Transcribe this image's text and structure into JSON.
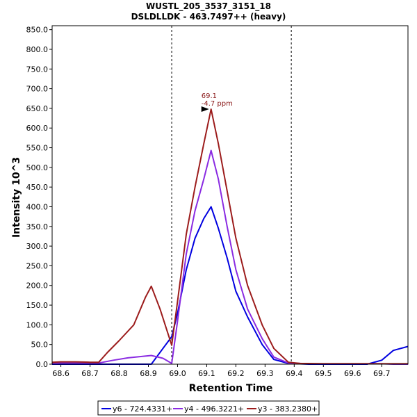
{
  "chart_data": {
    "type": "line",
    "title": "WUSTL_205_3537_3151_18",
    "subtitle": "DSLDLLDK - 463.7497++ (heavy)",
    "xlabel": "Retention Time",
    "ylabel": "Intensity 10^3",
    "xlim": [
      68.57,
      69.79
    ],
    "ylim": [
      0,
      860
    ],
    "x_ticks": [
      "68.6",
      "68.7",
      "68.8",
      "68.9",
      "69.0",
      "69.1",
      "69.2",
      "69.3",
      "69.4",
      "69.5",
      "69.6",
      "69.7"
    ],
    "x_tick_values": [
      68.6,
      68.7,
      68.8,
      68.9,
      69.0,
      69.1,
      69.2,
      69.3,
      69.4,
      69.5,
      69.6,
      69.7
    ],
    "y_ticks": [
      "0.0",
      "50.0",
      "100.0",
      "150.0",
      "200.0",
      "250.0",
      "300.0",
      "350.0",
      "400.0",
      "450.0",
      "500.0",
      "550.0",
      "600.0",
      "650.0",
      "700.0",
      "750.0",
      "800.0",
      "850.0"
    ],
    "y_tick_values": [
      0,
      50,
      100,
      150,
      200,
      250,
      300,
      350,
      400,
      450,
      500,
      550,
      600,
      650,
      700,
      750,
      800,
      850
    ],
    "vlines": [
      68.98,
      69.39
    ],
    "legend_position": "bottom",
    "grid": false,
    "annotation": {
      "x": 69.115,
      "y": 648,
      "lines": [
        "69.1",
        "-4.7 ppm"
      ],
      "color": "#8b1a1a"
    },
    "series": [
      {
        "name": "y6 - 724.4331+",
        "color": "#0000e0",
        "x": [
          68.57,
          68.6,
          68.65,
          68.7,
          68.75,
          68.8,
          68.85,
          68.91,
          68.95,
          68.98,
          69.0,
          69.03,
          69.06,
          69.09,
          69.115,
          69.14,
          69.17,
          69.2,
          69.24,
          69.29,
          69.33,
          69.38,
          69.45,
          69.5,
          69.6,
          69.65,
          69.7,
          69.74,
          69.79
        ],
        "y": [
          0,
          0,
          0,
          0,
          0,
          0,
          0,
          0,
          40,
          70,
          130,
          240,
          320,
          370,
          400,
          345,
          270,
          185,
          120,
          50,
          12,
          2,
          0,
          0,
          0,
          0,
          10,
          35,
          45
        ]
      },
      {
        "name": "y4 - 496.3221+",
        "color": "#8a2be2",
        "x": [
          68.57,
          68.6,
          68.65,
          68.7,
          68.73,
          68.78,
          68.83,
          68.88,
          68.91,
          68.95,
          68.98,
          69.0,
          69.03,
          69.06,
          69.09,
          69.115,
          69.14,
          69.17,
          69.2,
          69.24,
          69.29,
          69.33,
          69.38,
          69.45,
          69.5,
          69.6,
          69.65,
          69.7,
          69.74,
          69.79
        ],
        "y": [
          2,
          3,
          3,
          3,
          3,
          10,
          16,
          20,
          22,
          15,
          2,
          110,
          280,
          390,
          470,
          543,
          470,
          350,
          240,
          140,
          65,
          18,
          3,
          1,
          1,
          1,
          1,
          1,
          0,
          0
        ]
      },
      {
        "name": "y3 - 383.2380+",
        "color": "#9c1c1c",
        "x": [
          68.57,
          68.6,
          68.65,
          68.7,
          68.73,
          68.76,
          68.8,
          68.85,
          68.89,
          68.91,
          68.94,
          68.98,
          69.0,
          69.03,
          69.06,
          69.09,
          69.115,
          69.14,
          69.17,
          69.2,
          69.24,
          69.29,
          69.33,
          69.38,
          69.42,
          69.5,
          69.6,
          69.65,
          69.7,
          69.74,
          69.79
        ],
        "y": [
          5,
          6,
          6,
          5,
          5,
          30,
          60,
          100,
          170,
          198,
          140,
          48,
          160,
          330,
          450,
          560,
          648,
          560,
          440,
          320,
          200,
          100,
          40,
          5,
          2,
          1,
          1,
          1,
          1,
          1,
          1
        ]
      }
    ]
  }
}
